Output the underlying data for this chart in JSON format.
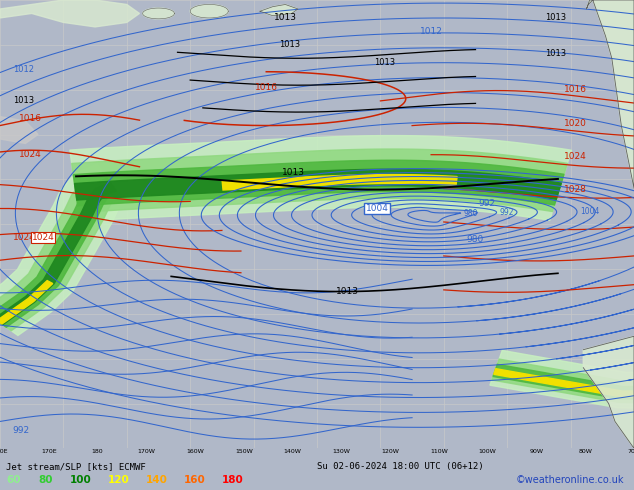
{
  "title_line1": "Jet stream/SLP [kts] ECMWF",
  "title_line2": "Su 02-06-2024 18:00 UTC (06+12)",
  "copyright": "©weatheronline.co.uk",
  "legend_values": [
    "60",
    "80",
    "100",
    "120",
    "140",
    "160",
    "180"
  ],
  "legend_colors": [
    "#90ee90",
    "#32cd32",
    "#008000",
    "#ffff00",
    "#ffa500",
    "#ff6600",
    "#ff0000"
  ],
  "bg_color": "#f0f0f0",
  "map_bg": "#f4f4f4",
  "grid_color": "#d0d0d0",
  "figsize": [
    6.34,
    4.9
  ],
  "dpi": 100
}
